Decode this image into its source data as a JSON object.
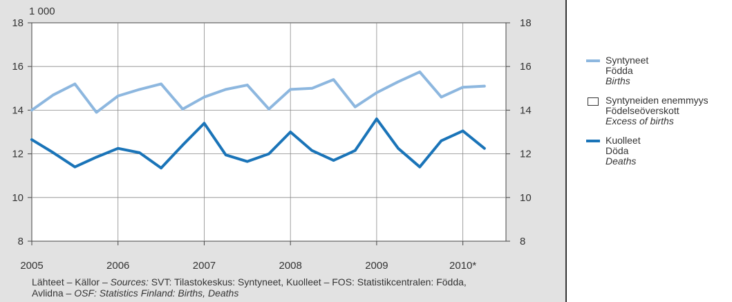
{
  "chart_data": {
    "type": "line",
    "unit_label": "1 000",
    "x": [
      "2005 Q1",
      "2005 Q2",
      "2005 Q3",
      "2005 Q4",
      "2006 Q1",
      "2006 Q2",
      "2006 Q3",
      "2006 Q4",
      "2007 Q1",
      "2007 Q2",
      "2007 Q3",
      "2007 Q4",
      "2008 Q1",
      "2008 Q2",
      "2008 Q3",
      "2008 Q4",
      "2009 Q1",
      "2009 Q2",
      "2009 Q3",
      "2009 Q4",
      "2010 Q1",
      "2010 Q2"
    ],
    "xticks": [
      "2005",
      "2006",
      "2007",
      "2008",
      "2009",
      "2010*"
    ],
    "yticks": [
      8,
      10,
      12,
      14,
      16,
      18
    ],
    "ylim": [
      8,
      18
    ],
    "grid": true,
    "series": [
      {
        "name": "Syntyneet",
        "name_sv": "Födda",
        "name_en": "Births",
        "color": "#8db7df",
        "values": [
          14.0,
          14.7,
          15.2,
          13.9,
          14.65,
          14.95,
          15.2,
          14.05,
          14.6,
          14.95,
          15.15,
          14.05,
          14.95,
          15.0,
          15.4,
          14.15,
          14.8,
          15.3,
          15.75,
          14.6,
          15.05,
          15.1
        ]
      },
      {
        "name": "Kuolleet",
        "name_sv": "Döda",
        "name_en": "Deaths",
        "color": "#1a74b8",
        "values": [
          12.65,
          12.05,
          11.4,
          11.85,
          12.25,
          12.05,
          11.35,
          12.4,
          13.4,
          11.95,
          11.65,
          12.0,
          13.0,
          12.15,
          11.7,
          12.15,
          13.6,
          12.25,
          11.4,
          12.6,
          13.05,
          12.25
        ]
      }
    ],
    "legend": [
      {
        "fi": "Syntyneet",
        "sv": "Födda",
        "en": "Births",
        "kind": "line",
        "color": "#8db7df"
      },
      {
        "fi": "Syntyneiden enemmyys",
        "sv": "Födelseöverskott",
        "en": "Excess of births",
        "kind": "box",
        "color": "#ffffff"
      },
      {
        "fi": "Kuolleet",
        "sv": "Döda",
        "en": "Deaths",
        "kind": "line",
        "color": "#1a74b8"
      }
    ]
  },
  "source": {
    "line1_a": "Lähteet – Källor – ",
    "line1_b": "Sources:",
    "line1_c": " SVT: Tilastokeskus: Syntyneet, Kuolleet – FOS: Statistikcentralen: Födda,",
    "line2_a": "Avlidna – ",
    "line2_b": "OSF: Statistics Finland: Births, Deaths"
  }
}
